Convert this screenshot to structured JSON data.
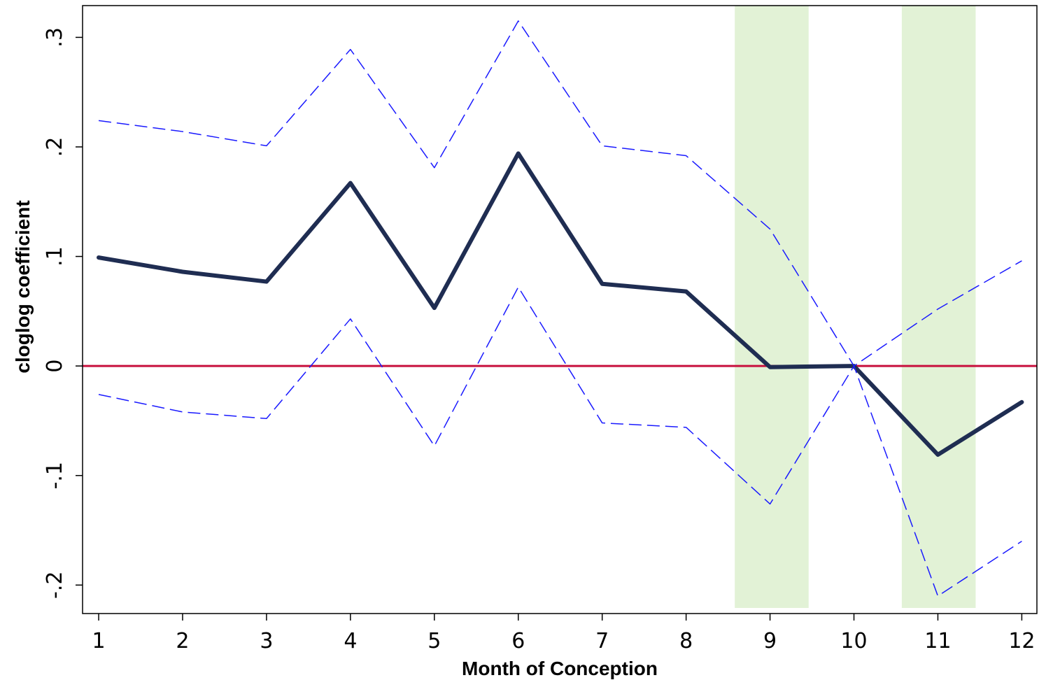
{
  "chart_data": {
    "type": "line",
    "x_label": "Month of Conception",
    "y_label": "cloglog coefficient",
    "x": [
      1,
      2,
      3,
      4,
      5,
      6,
      7,
      8,
      9,
      10,
      11,
      12
    ],
    "series": [
      {
        "color": "#1f2d52",
        "dashed": false,
        "values": [
          0.099,
          0.086,
          0.077,
          0.167,
          0.053,
          0.194,
          0.075,
          0.068,
          -0.001,
          0,
          -0.081,
          -0.033
        ]
      },
      {
        "color": "#1a1aff",
        "dashed": true,
        "values": [
          0.224,
          0.214,
          0.201,
          0.289,
          0.181,
          0.315,
          0.201,
          0.192,
          0.125,
          0,
          0.052,
          0.096
        ]
      },
      {
        "color": "#1a1aff",
        "dashed": true,
        "values": [
          -0.026,
          -0.042,
          -0.048,
          0.043,
          -0.073,
          0.072,
          -0.052,
          -0.056,
          -0.126,
          0,
          -0.21,
          -0.16
        ]
      }
    ],
    "shaded_regions": [
      [
        8.58,
        9.46
      ],
      [
        10.57,
        11.45
      ]
    ],
    "shade_color": "#e2f2d6",
    "hline": 0,
    "hline_color": "#c8103e",
    "xlim": [
      0.808,
      12.18
    ],
    "ylim": [
      -0.226,
      0.329
    ],
    "xticks": [
      1,
      2,
      3,
      4,
      5,
      6,
      7,
      8,
      9,
      10,
      11,
      12
    ],
    "yticks": [
      {
        "value": -0.2,
        "label": "-.2"
      },
      {
        "value": -0.1,
        "label": "-.1"
      },
      0,
      {
        "value": 0.1,
        "label": ".1"
      },
      {
        "value": 0.2,
        "label": ".2"
      },
      {
        "value": 0.3,
        "label": ".3"
      }
    ]
  }
}
